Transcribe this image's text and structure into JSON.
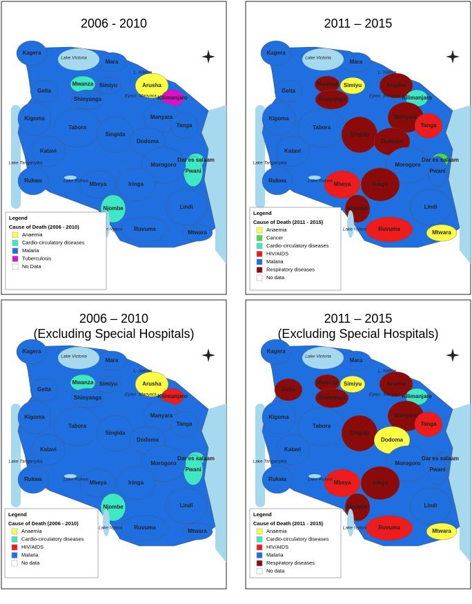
{
  "panels": [
    {
      "title": [
        "2006 - 2010"
      ],
      "regions": [
        {
          "name": "Kagera",
          "color": "#1f6fe0"
        },
        {
          "name": "Mara",
          "color": "#1f6fe0"
        },
        {
          "name": "Geita",
          "color": "#1f6fe0"
        },
        {
          "name": "Mwanza",
          "color": "#3ee8c4"
        },
        {
          "name": "Simiyu",
          "color": "#1f6fe0"
        },
        {
          "name": "Shinyanga",
          "color": "#1f6fe0"
        },
        {
          "name": "Arusha",
          "color": "#ffff44"
        },
        {
          "name": "Kilimanjaro",
          "color": "#e010c8"
        },
        {
          "name": "Manyara",
          "color": "#1f6fe0"
        },
        {
          "name": "Tanga",
          "color": "#1f6fe0"
        },
        {
          "name": "Kigoma",
          "color": "#1f6fe0"
        },
        {
          "name": "Tabora",
          "color": "#1f6fe0"
        },
        {
          "name": "Singida",
          "color": "#1f6fe0"
        },
        {
          "name": "Dodoma",
          "color": "#1f6fe0"
        },
        {
          "name": "Katavi",
          "color": "#1f6fe0"
        },
        {
          "name": "Dar es salaam",
          "color": "#3ee8c4"
        },
        {
          "name": "Pwani",
          "color": "#3ee8c4"
        },
        {
          "name": "Morogoro",
          "color": "#1f6fe0"
        },
        {
          "name": "Rukwa",
          "color": "#1f6fe0"
        },
        {
          "name": "Mbeya",
          "color": "#1f6fe0"
        },
        {
          "name": "Iringa",
          "color": "#1f6fe0"
        },
        {
          "name": "Njombe",
          "color": "#3ee8c4"
        },
        {
          "name": "Lindi",
          "color": "#1f6fe0"
        },
        {
          "name": "Ruvuma",
          "color": "#1f6fe0"
        },
        {
          "name": "Mtwara",
          "color": "#1f6fe0"
        }
      ],
      "lakes": [
        "Lake Victoria",
        "L. Natron",
        "Eyasi",
        "Manyara",
        "Lake Tanganyika",
        "Lake Rukwa",
        "Lake Nyasa"
      ],
      "legend": {
        "title": "Legend",
        "subtitle": "Cause of Death (2006 - 2010)",
        "items": [
          {
            "label": "Anaemia",
            "color": "#ffff44"
          },
          {
            "label": "Cardio-circulatory diseases",
            "color": "#3ee8c4"
          },
          {
            "label": "Malaria",
            "color": "#1f6fe0"
          },
          {
            "label": "Tuberculosis",
            "color": "#e010c8"
          },
          {
            "label": "No Data",
            "color": "#ffffff"
          }
        ]
      }
    },
    {
      "title": [
        "2011 – 2015"
      ],
      "regions": [
        {
          "name": "Kagera",
          "color": "#1f6fe0"
        },
        {
          "name": "Mara",
          "color": "#1f6fe0"
        },
        {
          "name": "Geita",
          "color": "#1f6fe0"
        },
        {
          "name": "Mwanza",
          "color": "#8b0a0a"
        },
        {
          "name": "Simiyu",
          "color": "#ffff44"
        },
        {
          "name": "Shinyanga",
          "color": "#8b0a0a"
        },
        {
          "name": "Arusha",
          "color": "#8b0a0a"
        },
        {
          "name": "Kilimanjaro",
          "color": "#3ee8c4"
        },
        {
          "name": "Manyara",
          "color": "#8b0a0a"
        },
        {
          "name": "Tanga",
          "color": "#ee1c1c"
        },
        {
          "name": "Kigoma",
          "color": "#1f6fe0"
        },
        {
          "name": "Tabora",
          "color": "#1f6fe0"
        },
        {
          "name": "Singida",
          "color": "#8b0a0a"
        },
        {
          "name": "Dodoma",
          "color": "#8b0a0a"
        },
        {
          "name": "Katavi",
          "color": "#1f6fe0"
        },
        {
          "name": "Dar es salaam",
          "color": "#44dd44"
        },
        {
          "name": "Pwani",
          "color": "#1f6fe0"
        },
        {
          "name": "Morogoro",
          "color": "#1f6fe0"
        },
        {
          "name": "Rukwa",
          "color": "#1f6fe0"
        },
        {
          "name": "Mbeya",
          "color": "#ee1c1c"
        },
        {
          "name": "Iringa",
          "color": "#8b0a0a"
        },
        {
          "name": "Njombe",
          "color": "#8b0a0a"
        },
        {
          "name": "Lindi",
          "color": "#1f6fe0"
        },
        {
          "name": "Ruvuma",
          "color": "#ee1c1c"
        },
        {
          "name": "Mtwara",
          "color": "#ffff44"
        }
      ],
      "lakes": [
        "Lake Victoria",
        "L. Natron",
        "Eyasi",
        "Manyara",
        "Lake Tanganyika",
        "Lake Rukwa",
        "Lake Nyasa"
      ],
      "legend": {
        "title": "Legend",
        "subtitle": "Cause of Death (2011 - 2015)",
        "items": [
          {
            "label": "Anaemia",
            "color": "#ffff44"
          },
          {
            "label": "Cancer",
            "color": "#44dd44"
          },
          {
            "label": "Cardio-circulatory diseases",
            "color": "#3ee8c4"
          },
          {
            "label": "HIV/AIDS",
            "color": "#ee1c1c"
          },
          {
            "label": "Malaria",
            "color": "#1f6fe0"
          },
          {
            "label": "Respiratory diseases",
            "color": "#8b0a0a"
          },
          {
            "label": "No data",
            "color": "#ffffff"
          }
        ]
      }
    },
    {
      "title": [
        "2006 – 2010",
        "(Excluding  Special Hospitals)"
      ],
      "regions": [
        {
          "name": "Kagera",
          "color": "#1f6fe0"
        },
        {
          "name": "Mara",
          "color": "#1f6fe0"
        },
        {
          "name": "Geita",
          "color": "#1f6fe0"
        },
        {
          "name": "Mwanza",
          "color": "#3ee8c4"
        },
        {
          "name": "Simiyu",
          "color": "#1f6fe0"
        },
        {
          "name": "Shinyanga",
          "color": "#1f6fe0"
        },
        {
          "name": "Arusha",
          "color": "#ffff44"
        },
        {
          "name": "Kilimanjaro",
          "color": "#ee1c1c"
        },
        {
          "name": "Manyara",
          "color": "#1f6fe0"
        },
        {
          "name": "Tanga",
          "color": "#1f6fe0"
        },
        {
          "name": "Kigoma",
          "color": "#1f6fe0"
        },
        {
          "name": "Tabora",
          "color": "#1f6fe0"
        },
        {
          "name": "Singida",
          "color": "#1f6fe0"
        },
        {
          "name": "Dodoma",
          "color": "#1f6fe0"
        },
        {
          "name": "Katavi",
          "color": "#1f6fe0"
        },
        {
          "name": "Dar es salaam",
          "color": "#3ee8c4"
        },
        {
          "name": "Pwani",
          "color": "#3ee8c4"
        },
        {
          "name": "Morogoro",
          "color": "#1f6fe0"
        },
        {
          "name": "Rukwa",
          "color": "#1f6fe0"
        },
        {
          "name": "Mbeya",
          "color": "#1f6fe0"
        },
        {
          "name": "Iringa",
          "color": "#1f6fe0"
        },
        {
          "name": "Njombe",
          "color": "#3ee8c4"
        },
        {
          "name": "Lindi",
          "color": "#1f6fe0"
        },
        {
          "name": "Ruvuma",
          "color": "#1f6fe0"
        },
        {
          "name": "Mtwara",
          "color": "#1f6fe0"
        }
      ],
      "lakes": [
        "Lake Victoria",
        "L. Natron",
        "Eyasi",
        "Manyara",
        "Lake Tanganyika",
        "Lake Rukwa",
        "Lake Nyasa"
      ],
      "legend": {
        "title": "Legend",
        "subtitle": "Cause of Death (2006 - 2010)",
        "items": [
          {
            "label": "Anaemia",
            "color": "#ffff44"
          },
          {
            "label": "Cardio-circulatory diseases",
            "color": "#3ee8c4"
          },
          {
            "label": "HIV/AIDS",
            "color": "#ee1c1c"
          },
          {
            "label": "Malaria",
            "color": "#1f6fe0"
          },
          {
            "label": "No data",
            "color": "#ffffff"
          }
        ]
      }
    },
    {
      "title": [
        "2011 – 2015",
        "(Excluding  Special Hospitals)"
      ],
      "regions": [
        {
          "name": "Kagera",
          "color": "#1f6fe0"
        },
        {
          "name": "Mara",
          "color": "#1f6fe0"
        },
        {
          "name": "Geita",
          "color": "#8b0a0a"
        },
        {
          "name": "Mwanza",
          "color": "#8b0a0a"
        },
        {
          "name": "Simiyu",
          "color": "#ffff44"
        },
        {
          "name": "Shinyanga",
          "color": "#8b0a0a"
        },
        {
          "name": "Arusha",
          "color": "#8b0a0a"
        },
        {
          "name": "Kilimanjaro",
          "color": "#3ee8c4"
        },
        {
          "name": "Manyara",
          "color": "#8b0a0a"
        },
        {
          "name": "Tanga",
          "color": "#ee1c1c"
        },
        {
          "name": "Kigoma",
          "color": "#1f6fe0"
        },
        {
          "name": "Tabora",
          "color": "#1f6fe0"
        },
        {
          "name": "Singida",
          "color": "#8b0a0a"
        },
        {
          "name": "Dodoma",
          "color": "#ffff44"
        },
        {
          "name": "Katavi",
          "color": "#1f6fe0"
        },
        {
          "name": "Dar es salaam",
          "color": "#1f6fe0"
        },
        {
          "name": "Pwani",
          "color": "#1f6fe0"
        },
        {
          "name": "Morogoro",
          "color": "#1f6fe0"
        },
        {
          "name": "Rukwa",
          "color": "#1f6fe0"
        },
        {
          "name": "Mbeya",
          "color": "#ee1c1c"
        },
        {
          "name": "Iringa",
          "color": "#8b0a0a"
        },
        {
          "name": "Njombe",
          "color": "#8b0a0a"
        },
        {
          "name": "Lindi",
          "color": "#1f6fe0"
        },
        {
          "name": "Ruvuma",
          "color": "#ee1c1c"
        },
        {
          "name": "Mtwara",
          "color": "#ffff44"
        }
      ],
      "lakes": [
        "Lake Victoria",
        "L. Natron",
        "Eyasi",
        "Manyara",
        "Lake Tanganyika",
        "Lake Rukwa",
        "Lake Nyasa"
      ],
      "legend": {
        "title": "Legend",
        "subtitle": "Cause of Death (2011 - 2015)",
        "items": [
          {
            "label": "Anaemia",
            "color": "#ffff44"
          },
          {
            "label": "Cardio-circulatory diseases",
            "color": "#3ee8c4"
          },
          {
            "label": "HIV/AIDS",
            "color": "#ee1c1c"
          },
          {
            "label": "Malaria",
            "color": "#1f6fe0"
          },
          {
            "label": "Respiratory diseases",
            "color": "#8b0a0a"
          },
          {
            "label": "No data",
            "color": "#ffffff"
          }
        ]
      }
    }
  ]
}
